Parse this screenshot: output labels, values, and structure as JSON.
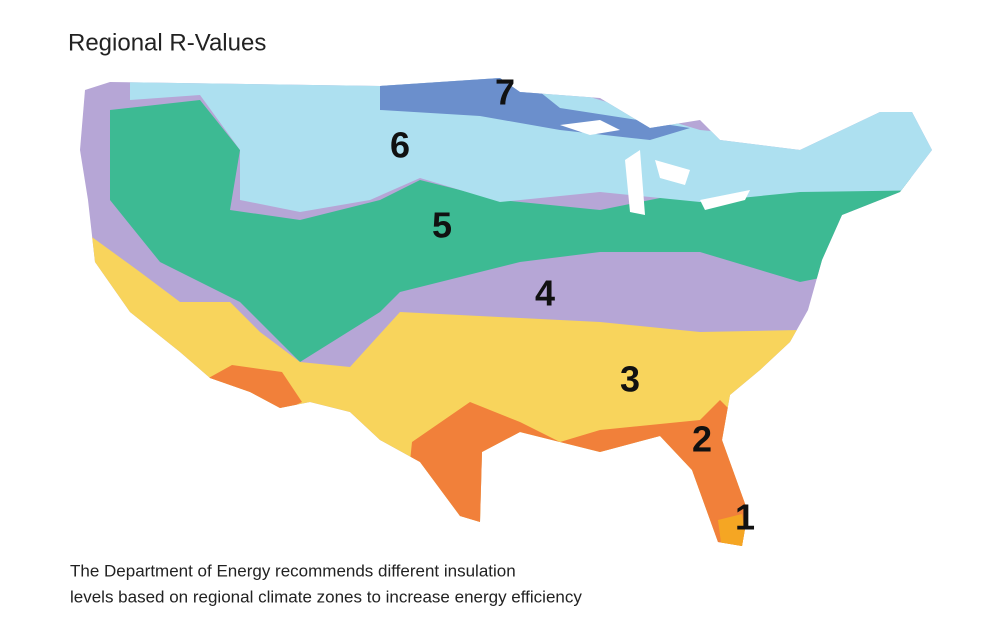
{
  "title": "Regional R-Values",
  "zones": [
    {
      "label": "7"
    },
    {
      "label": "6"
    },
    {
      "label": "5"
    },
    {
      "label": "4"
    },
    {
      "label": "3"
    },
    {
      "label": "2"
    },
    {
      "label": "1"
    }
  ],
  "caption": [
    "The Department of Energy recommends different insulation",
    "levels based on regional climate zones to increase energy efficiency"
  ]
}
